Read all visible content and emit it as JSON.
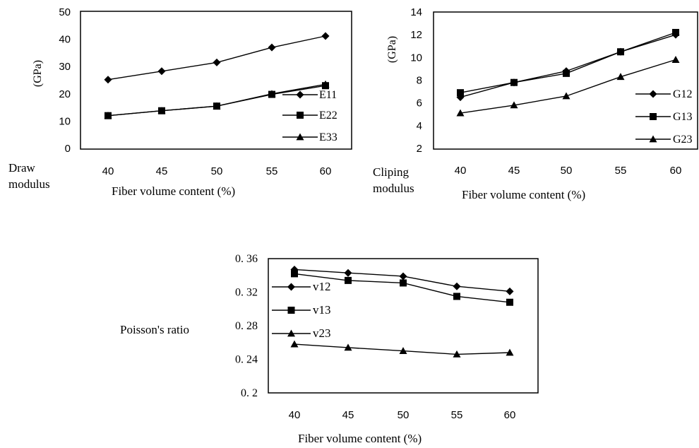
{
  "chart_data": [
    {
      "type": "line",
      "ylabel": "(GPa)",
      "side_label": [
        "Draw",
        "modulus"
      ],
      "xlabel": "Fiber volume content (%)",
      "x": [
        40,
        45,
        50,
        55,
        60
      ],
      "ylim": [
        0,
        50
      ],
      "yticks": [
        "0",
        "10",
        "20",
        "30",
        "40",
        "50"
      ],
      "ytick_values": [
        0,
        10,
        20,
        30,
        40,
        50
      ],
      "grid": false,
      "legend_position": "right",
      "series": [
        {
          "name": "E11",
          "marker": "diamond",
          "values": [
            25.2,
            28.3,
            31.5,
            37.0,
            41.2
          ]
        },
        {
          "name": "E22",
          "marker": "square",
          "values": [
            12.0,
            13.8,
            15.5,
            19.8,
            23.0
          ]
        },
        {
          "name": "E33",
          "marker": "triangle",
          "values": [
            12.0,
            13.8,
            15.5,
            20.0,
            23.5
          ]
        }
      ]
    },
    {
      "type": "line",
      "ylabel": "(GPa)",
      "side_label": [
        "Cliping",
        "modulus"
      ],
      "xlabel": "Fiber volume content (%)",
      "x": [
        40,
        45,
        50,
        55,
        60
      ],
      "ylim": [
        2,
        14
      ],
      "yticks": [
        "2",
        "4",
        "6",
        "8",
        "10",
        "12",
        "14"
      ],
      "ytick_values": [
        2,
        4,
        6,
        8,
        10,
        12,
        14
      ],
      "grid": false,
      "legend_position": "right",
      "series": [
        {
          "name": "G12",
          "marker": "diamond",
          "values": [
            6.5,
            7.8,
            8.8,
            10.5,
            12.0
          ]
        },
        {
          "name": "G13",
          "marker": "square",
          "values": [
            6.9,
            7.8,
            8.6,
            10.5,
            12.2
          ]
        },
        {
          "name": "G23",
          "marker": "triangle",
          "values": [
            5.1,
            5.8,
            6.6,
            8.3,
            9.8
          ]
        }
      ]
    },
    {
      "type": "line",
      "ylabel": "Poisson's ratio",
      "xlabel": "Fiber volume content (%)",
      "x": [
        40,
        45,
        50,
        55,
        60
      ],
      "ylim": [
        0.2,
        0.36
      ],
      "yticks": [
        "0. 2",
        "0. 24",
        "0. 28",
        "0. 32",
        "0. 36"
      ],
      "ytick_values": [
        0.2,
        0.24,
        0.28,
        0.32,
        0.36
      ],
      "grid": false,
      "legend_position": "left",
      "series": [
        {
          "name": "v12",
          "marker": "diamond",
          "values": [
            0.347,
            0.343,
            0.339,
            0.327,
            0.321
          ]
        },
        {
          "name": "v13",
          "marker": "square",
          "values": [
            0.342,
            0.334,
            0.331,
            0.315,
            0.308
          ]
        },
        {
          "name": "v23",
          "marker": "triangle",
          "values": [
            0.258,
            0.254,
            0.25,
            0.246,
            0.248
          ]
        }
      ]
    }
  ]
}
